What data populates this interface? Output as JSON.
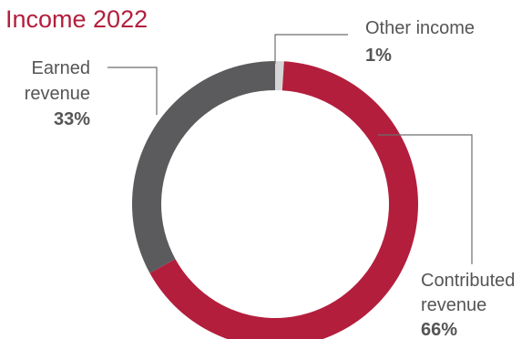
{
  "chart_data": {
    "type": "pie",
    "title": "Income 2022",
    "donut": true,
    "start_at": "top",
    "direction": "clockwise",
    "slices": [
      {
        "label_lines": [
          "Other income"
        ],
        "percent_label": "1%",
        "value": 1,
        "color": "#d5d5d5"
      },
      {
        "label_lines": [
          "Contributed",
          "revenue"
        ],
        "percent_label": "66%",
        "value": 66,
        "color": "#b31e3c"
      },
      {
        "label_lines": [
          "Earned",
          "revenue"
        ],
        "percent_label": "33%",
        "value": 33,
        "color": "#5b5b5d"
      }
    ]
  },
  "colors": {
    "title": "#b31e3c",
    "label_text": "#555555",
    "leader_line": "#6d6d6d",
    "background": "#ffffff"
  }
}
